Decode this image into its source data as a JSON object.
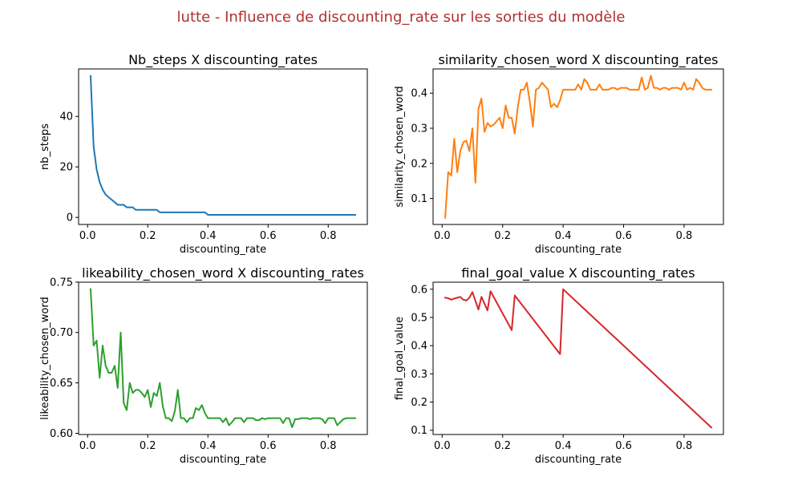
{
  "suptitle": "lutte - Influence de discounting_rate sur les sorties du modèle",
  "suptitle_color": "#b03030",
  "chart_data": [
    {
      "type": "line",
      "title": "Nb_steps X discounting_rates",
      "xlabel": "discounting_rate",
      "ylabel": "nb_steps",
      "xlim": [
        -0.03,
        0.93
      ],
      "ylim": [
        -2.8,
        58.8
      ],
      "xticks": [
        0.0,
        0.2,
        0.4,
        0.6,
        0.8
      ],
      "xtick_labels": [
        "0.0",
        "0.2",
        "0.4",
        "0.6",
        "0.8"
      ],
      "yticks": [
        0,
        20,
        40
      ],
      "ytick_labels": [
        "0",
        "20",
        "40"
      ],
      "color": "#1f77b4",
      "x": [
        0.01,
        0.02,
        0.03,
        0.04,
        0.05,
        0.06,
        0.07,
        0.08,
        0.09,
        0.1,
        0.11,
        0.12,
        0.13,
        0.14,
        0.15,
        0.16,
        0.17,
        0.18,
        0.19,
        0.2,
        0.21,
        0.22,
        0.23,
        0.24,
        0.25,
        0.26,
        0.27,
        0.28,
        0.29,
        0.3,
        0.31,
        0.32,
        0.33,
        0.34,
        0.35,
        0.36,
        0.37,
        0.38,
        0.39,
        0.4,
        0.89
      ],
      "y": [
        56,
        28,
        19,
        14,
        11,
        9,
        8,
        7,
        6,
        5,
        5,
        5,
        4,
        4,
        4,
        3,
        3,
        3,
        3,
        3,
        3,
        3,
        3,
        2,
        2,
        2,
        2,
        2,
        2,
        2,
        2,
        2,
        2,
        2,
        2,
        2,
        2,
        2,
        2,
        1,
        1
      ]
    },
    {
      "type": "line",
      "title": "similarity_chosen_word X discounting_rates",
      "xlabel": "discounting_rate",
      "ylabel": "similarity_chosen_word",
      "xlim": [
        -0.03,
        0.93
      ],
      "ylim": [
        0.026,
        0.469
      ],
      "xticks": [
        0.0,
        0.2,
        0.4,
        0.6,
        0.8
      ],
      "xtick_labels": [
        "0.0",
        "0.2",
        "0.4",
        "0.6",
        "0.8"
      ],
      "yticks": [
        0.1,
        0.2,
        0.3,
        0.4
      ],
      "ytick_labels": [
        "0.1",
        "0.2",
        "0.3",
        "0.4"
      ],
      "color": "#ff7f0e",
      "x": [
        0.01,
        0.02,
        0.03,
        0.04,
        0.05,
        0.06,
        0.07,
        0.08,
        0.09,
        0.1,
        0.11,
        0.12,
        0.13,
        0.14,
        0.15,
        0.16,
        0.17,
        0.18,
        0.19,
        0.2,
        0.21,
        0.22,
        0.23,
        0.24,
        0.25,
        0.26,
        0.27,
        0.28,
        0.29,
        0.3,
        0.31,
        0.32,
        0.33,
        0.34,
        0.35,
        0.36,
        0.37,
        0.38,
        0.39,
        0.4,
        0.41,
        0.42,
        0.43,
        0.44,
        0.45,
        0.46,
        0.47,
        0.48,
        0.49,
        0.5,
        0.51,
        0.52,
        0.53,
        0.54,
        0.55,
        0.56,
        0.57,
        0.58,
        0.59,
        0.6,
        0.61,
        0.62,
        0.63,
        0.64,
        0.65,
        0.66,
        0.67,
        0.68,
        0.69,
        0.7,
        0.71,
        0.72,
        0.73,
        0.74,
        0.75,
        0.76,
        0.77,
        0.78,
        0.79,
        0.8,
        0.81,
        0.82,
        0.83,
        0.84,
        0.85,
        0.86,
        0.87,
        0.88,
        0.89
      ],
      "y": [
        0.045,
        0.175,
        0.165,
        0.27,
        0.175,
        0.235,
        0.26,
        0.265,
        0.235,
        0.3,
        0.145,
        0.355,
        0.385,
        0.29,
        0.315,
        0.305,
        0.31,
        0.32,
        0.33,
        0.3,
        0.365,
        0.33,
        0.33,
        0.285,
        0.36,
        0.41,
        0.41,
        0.43,
        0.375,
        0.305,
        0.41,
        0.415,
        0.43,
        0.42,
        0.41,
        0.36,
        0.37,
        0.36,
        0.38,
        0.41,
        0.41,
        0.41,
        0.41,
        0.41,
        0.425,
        0.41,
        0.44,
        0.43,
        0.41,
        0.41,
        0.41,
        0.425,
        0.41,
        0.41,
        0.41,
        0.415,
        0.415,
        0.41,
        0.415,
        0.415,
        0.415,
        0.41,
        0.41,
        0.41,
        0.41,
        0.445,
        0.41,
        0.415,
        0.45,
        0.415,
        0.415,
        0.41,
        0.415,
        0.415,
        0.41,
        0.415,
        0.415,
        0.415,
        0.41,
        0.43,
        0.41,
        0.415,
        0.41,
        0.44,
        0.43,
        0.415,
        0.41,
        0.41,
        0.41
      ]
    },
    {
      "type": "line",
      "title": "likeability_chosen_word X discounting_rates",
      "xlabel": "discounting_rate",
      "ylabel": "likeability_chosen_word",
      "xlim": [
        -0.03,
        0.93
      ],
      "ylim": [
        0.5988,
        0.7499
      ],
      "xticks": [
        0.0,
        0.2,
        0.4,
        0.6,
        0.8
      ],
      "xtick_labels": [
        "0.0",
        "0.2",
        "0.4",
        "0.6",
        "0.8"
      ],
      "yticks": [
        0.6,
        0.65,
        0.7,
        0.75
      ],
      "ytick_labels": [
        "0.60",
        "0.65",
        "0.70",
        "0.75"
      ],
      "color": "#2ca02c",
      "x": [
        0.01,
        0.02,
        0.03,
        0.04,
        0.05,
        0.06,
        0.07,
        0.08,
        0.09,
        0.1,
        0.11,
        0.12,
        0.13,
        0.14,
        0.15,
        0.16,
        0.17,
        0.18,
        0.19,
        0.2,
        0.21,
        0.22,
        0.23,
        0.24,
        0.25,
        0.26,
        0.27,
        0.28,
        0.29,
        0.3,
        0.31,
        0.32,
        0.33,
        0.34,
        0.35,
        0.36,
        0.37,
        0.38,
        0.39,
        0.4,
        0.41,
        0.42,
        0.43,
        0.44,
        0.45,
        0.46,
        0.47,
        0.48,
        0.49,
        0.5,
        0.51,
        0.52,
        0.53,
        0.54,
        0.55,
        0.56,
        0.57,
        0.58,
        0.59,
        0.6,
        0.61,
        0.62,
        0.63,
        0.64,
        0.65,
        0.66,
        0.67,
        0.68,
        0.69,
        0.7,
        0.71,
        0.72,
        0.73,
        0.74,
        0.75,
        0.76,
        0.77,
        0.78,
        0.79,
        0.8,
        0.81,
        0.82,
        0.83,
        0.84,
        0.85,
        0.86,
        0.87,
        0.88,
        0.89
      ],
      "y": [
        0.743,
        0.687,
        0.692,
        0.655,
        0.687,
        0.667,
        0.66,
        0.66,
        0.667,
        0.645,
        0.7,
        0.63,
        0.623,
        0.65,
        0.64,
        0.643,
        0.643,
        0.64,
        0.636,
        0.643,
        0.626,
        0.64,
        0.637,
        0.65,
        0.627,
        0.615,
        0.615,
        0.612,
        0.622,
        0.643,
        0.615,
        0.615,
        0.611,
        0.615,
        0.615,
        0.625,
        0.623,
        0.628,
        0.62,
        0.615,
        0.615,
        0.615,
        0.615,
        0.615,
        0.611,
        0.615,
        0.608,
        0.611,
        0.615,
        0.615,
        0.615,
        0.611,
        0.615,
        0.615,
        0.615,
        0.613,
        0.613,
        0.615,
        0.614,
        0.615,
        0.615,
        0.615,
        0.615,
        0.615,
        0.61,
        0.615,
        0.615,
        0.606,
        0.614,
        0.614,
        0.615,
        0.615,
        0.615,
        0.614,
        0.615,
        0.615,
        0.615,
        0.614,
        0.61,
        0.615,
        0.615,
        0.615,
        0.608,
        0.611,
        0.614,
        0.615,
        0.615,
        0.615,
        0.615
      ]
    },
    {
      "type": "line",
      "title": "final_goal_value X discounting_rates",
      "xlabel": "discounting_rate",
      "ylabel": "final_goal_value",
      "xlim": [
        -0.03,
        0.93
      ],
      "ylim": [
        0.085,
        0.625
      ],
      "xticks": [
        0.0,
        0.2,
        0.4,
        0.6,
        0.8
      ],
      "xtick_labels": [
        "0.0",
        "0.2",
        "0.4",
        "0.6",
        "0.8"
      ],
      "yticks": [
        0.1,
        0.2,
        0.3,
        0.4,
        0.5,
        0.6
      ],
      "ytick_labels": [
        "0.1",
        "0.2",
        "0.3",
        "0.4",
        "0.5",
        "0.6"
      ],
      "color": "#d62728",
      "x": [
        0.01,
        0.02,
        0.03,
        0.04,
        0.05,
        0.06,
        0.07,
        0.08,
        0.09,
        0.1,
        0.12,
        0.13,
        0.15,
        0.16,
        0.23,
        0.24,
        0.39,
        0.4,
        0.89
      ],
      "y": [
        0.57,
        0.568,
        0.563,
        0.567,
        0.57,
        0.573,
        0.563,
        0.56,
        0.57,
        0.59,
        0.528,
        0.573,
        0.525,
        0.593,
        0.455,
        0.578,
        0.37,
        0.6,
        0.11
      ]
    }
  ]
}
